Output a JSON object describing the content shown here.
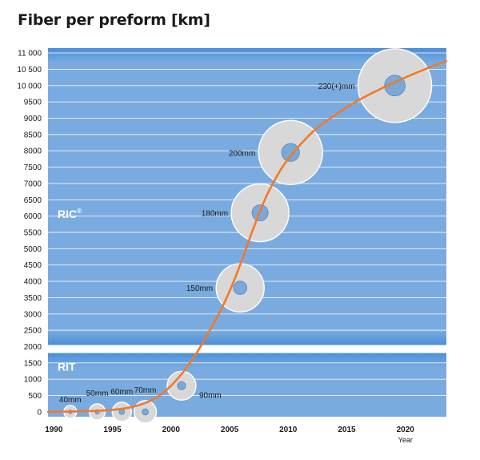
{
  "title": "Fiber per preform [km]",
  "chart_data": {
    "type": "line",
    "title": "Fiber per preform [km]",
    "xlabel": "Year",
    "ylabel": "",
    "xlim": [
      1989.5,
      2023.5
    ],
    "ylim": [
      -150,
      11150
    ],
    "grid": "horizontal",
    "x_ticks": [
      {
        "value": 1990,
        "label": "1990"
      },
      {
        "value": 1995,
        "label": "1995"
      },
      {
        "value": 2000,
        "label": "2000"
      },
      {
        "value": 2005,
        "label": "2005"
      },
      {
        "value": 2010,
        "label": "2010"
      },
      {
        "value": 2015,
        "label": "2015"
      },
      {
        "value": 2020,
        "label": "2020"
      }
    ],
    "y_ticks": [
      {
        "value": 0,
        "label": "0"
      },
      {
        "value": 500,
        "label": "500"
      },
      {
        "value": 1000,
        "label": "1000"
      },
      {
        "value": 1500,
        "label": "1500"
      },
      {
        "value": 2000,
        "label": "2000"
      },
      {
        "value": 2500,
        "label": "2500"
      },
      {
        "value": 3000,
        "label": "3000"
      },
      {
        "value": 3500,
        "label": "3500"
      },
      {
        "value": 4000,
        "label": "4000"
      },
      {
        "value": 4500,
        "label": "4500"
      },
      {
        "value": 5000,
        "label": "5000"
      },
      {
        "value": 5500,
        "label": "5500"
      },
      {
        "value": 6000,
        "label": "6000"
      },
      {
        "value": 6500,
        "label": "6500"
      },
      {
        "value": 7000,
        "label": "7000"
      },
      {
        "value": 7500,
        "label": "7500"
      },
      {
        "value": 8000,
        "label": "8000"
      },
      {
        "value": 8500,
        "label": "8500"
      },
      {
        "value": 9000,
        "label": "9000"
      },
      {
        "value": 9500,
        "label": "9500"
      },
      {
        "value": 10000,
        "label": "10 000"
      },
      {
        "value": 10500,
        "label": "10 500"
      },
      {
        "value": 11000,
        "label": "11 000"
      }
    ],
    "regions": [
      {
        "name": "RIC",
        "superscript": "®",
        "from": 2050,
        "to": 11150
      },
      {
        "name": "RIT",
        "superscript": "",
        "from": -150,
        "to": 1800
      }
    ],
    "series": [
      {
        "name": "",
        "color": "#f07a2a",
        "x": [
          1989.5,
          1995,
          1998,
          2000,
          2002,
          2004,
          2005,
          2006,
          2007,
          2008,
          2009,
          2010,
          2012,
          2014,
          2016,
          2018,
          2020,
          2022,
          2023.5
        ],
        "y": [
          0,
          60,
          300,
          800,
          1700,
          2950,
          3700,
          4600,
          5600,
          6500,
          7200,
          7750,
          8550,
          9100,
          9550,
          9920,
          10250,
          10550,
          10750
        ]
      }
    ],
    "preforms": [
      {
        "label": "40mm",
        "x": 1991.4,
        "y": 0,
        "size": 40,
        "label_side": "below"
      },
      {
        "label": "50mm",
        "x": 1993.7,
        "y": 0,
        "size": 50,
        "label_side": "above"
      },
      {
        "label": "60mm",
        "x": 1995.8,
        "y": 0,
        "size": 60,
        "label_side": "above"
      },
      {
        "label": "70mm",
        "x": 1997.8,
        "y": 0,
        "size": 70,
        "label_side": "above"
      },
      {
        "label": "90mm",
        "x": 2000.9,
        "y": 800,
        "size": 90,
        "label_side": "right"
      },
      {
        "label": "150mm",
        "x": 2005.9,
        "y": 3800,
        "size": 150,
        "label_side": "left"
      },
      {
        "label": "180mm",
        "x": 2007.6,
        "y": 6100,
        "size": 180,
        "label_side": "left"
      },
      {
        "label": "200mm",
        "x": 2010.2,
        "y": 7950,
        "size": 200,
        "label_side": "left"
      },
      {
        "label": "230(+)mm",
        "x": 2019.1,
        "y": 10000,
        "size": 230,
        "label_side": "left"
      }
    ]
  }
}
